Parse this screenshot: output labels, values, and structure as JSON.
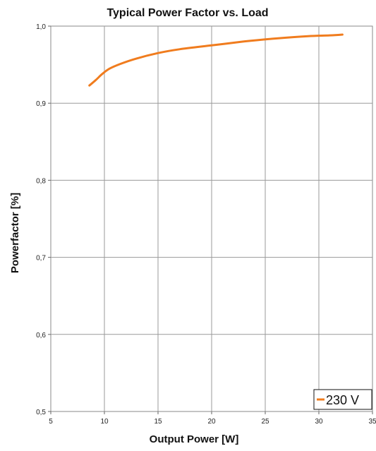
{
  "chart_data": {
    "type": "line",
    "title": "Typical Power Factor vs. Load",
    "xlabel": "Output Power [W]",
    "ylabel": "Powerfactor [%]",
    "xlim": [
      5,
      35
    ],
    "ylim": [
      0.5,
      1.0
    ],
    "xticks": [
      "5",
      "10",
      "15",
      "20",
      "25",
      "30",
      "35"
    ],
    "yticks": [
      "0,5",
      "0,6",
      "0,7",
      "0,8",
      "0,9",
      "1,0"
    ],
    "grid": true,
    "legend_position": "bottom-right",
    "series": [
      {
        "name": "230 V",
        "color": "#f07c1e",
        "x": [
          8.6,
          9.2,
          9.8,
          10.5,
          11.5,
          13,
          15,
          17,
          20,
          23,
          26,
          29,
          31,
          32.2
        ],
        "y": [
          0.923,
          0.93,
          0.938,
          0.945,
          0.951,
          0.958,
          0.965,
          0.97,
          0.975,
          0.98,
          0.984,
          0.987,
          0.988,
          0.989
        ]
      }
    ]
  }
}
